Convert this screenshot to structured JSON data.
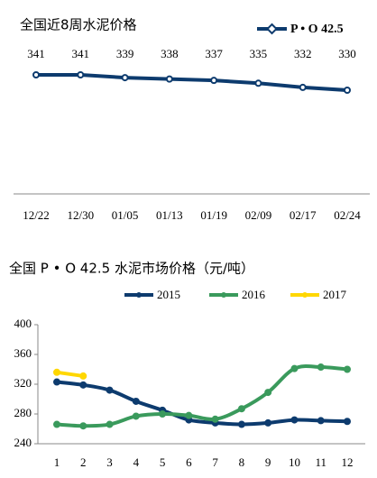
{
  "charts": [
    {
      "type": "line",
      "title": "全国近8周水泥价格",
      "categories": [
        "12/22",
        "12/30",
        "01/05",
        "01/13",
        "01/19",
        "02/09",
        "02/17",
        "02/24"
      ],
      "series": [
        {
          "name": "P • O 42.5",
          "color": "#0d3b6e",
          "values": [
            341,
            341,
            339,
            338,
            337,
            335,
            332,
            330
          ]
        }
      ],
      "data_labels": true
    },
    {
      "type": "line",
      "title": "全国 P • O 42.5 水泥市场价格（元/吨）",
      "categories": [
        "1",
        "2",
        "3",
        "4",
        "5",
        "6",
        "7",
        "8",
        "9",
        "10",
        "11",
        "12"
      ],
      "series": [
        {
          "name": "2015",
          "color": "#0d3b6e",
          "values": [
            323,
            319,
            312,
            297,
            285,
            272,
            268,
            266,
            268,
            272,
            271,
            270
          ]
        },
        {
          "name": "2016",
          "color": "#3a9a5c",
          "values": [
            266,
            264,
            266,
            277,
            280,
            278,
            273,
            287,
            309,
            341,
            343,
            340
          ]
        },
        {
          "name": "2017",
          "color": "#ffd700",
          "values": [
            336,
            331,
            null,
            null,
            null,
            null,
            null,
            null,
            null,
            null,
            null,
            null
          ]
        }
      ],
      "ylim": [
        240,
        400
      ],
      "yticks": [
        240,
        280,
        320,
        360,
        400
      ],
      "smooth": true
    }
  ]
}
